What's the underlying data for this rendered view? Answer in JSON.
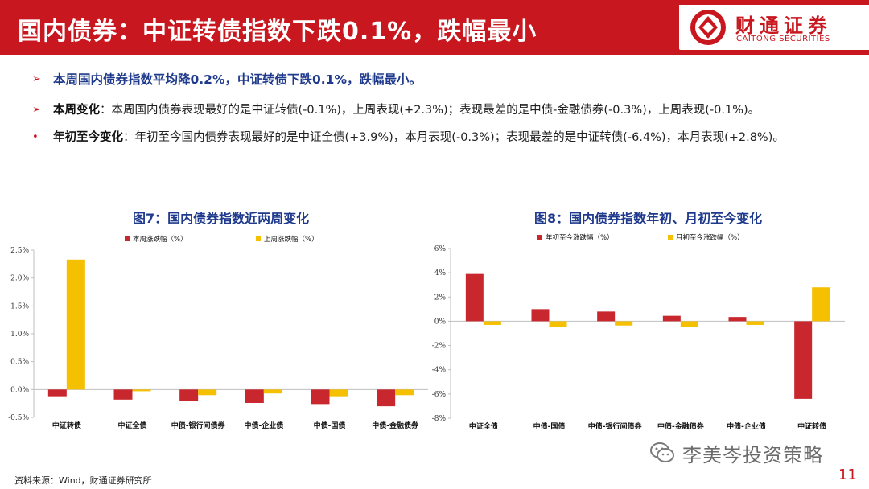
{
  "header": {
    "title": "国内债券：中证转债指数下跌0.1%，跌幅最小",
    "brand_cn": "财通证券",
    "brand_en": "CAITONG SECURITIES"
  },
  "bullets": {
    "b1": "本周国内债券指数平均降0.2%，中证转债下跌0.1%，跌幅最小。",
    "b2_label": "本周变化",
    "b2_text": "：本周国内债券表现最好的是中证转债(-0.1%)，上周表现(+2.3%)；表现最差的是中债-金融债券(-0.3%)，上周表现(-0.1%)。",
    "b3_label": "年初至今变化",
    "b3_text": "：年初至今国内债券表现最好的是中证全债(+3.9%)，本月表现(-0.3%)；表现最差的是中证转债(-6.4%)，本月表现(+2.8%)。"
  },
  "colors": {
    "red": "#c8272e",
    "yellow": "#f5c000",
    "brand": "#c8171f",
    "title_blue": "#1f3a8c"
  },
  "chart_data": [
    {
      "type": "bar",
      "title": "图7：国内债券指数近两周变化",
      "categories": [
        "中证转债",
        "中证全债",
        "中债-银行间债券",
        "中债-企业债",
        "中债-国债",
        "中债-金融债券"
      ],
      "series": [
        {
          "name": "本周涨跌幅（%）",
          "color": "#c8272e",
          "values": [
            -0.12,
            -0.18,
            -0.2,
            -0.24,
            -0.26,
            -0.3
          ]
        },
        {
          "name": "上周涨跌幅（%）",
          "color": "#f5c000",
          "values": [
            2.33,
            -0.03,
            -0.1,
            -0.07,
            -0.12,
            -0.1
          ]
        }
      ],
      "ylim": [
        -0.5,
        2.5
      ],
      "yticks": [
        "-0.5%",
        "0.0%",
        "0.5%",
        "1.0%",
        "1.5%",
        "2.0%",
        "2.5%"
      ],
      "legend": "top"
    },
    {
      "type": "bar",
      "title": "图8：国内债券指数年初、月初至今变化",
      "categories": [
        "中证全债",
        "中债-国债",
        "中债-银行间债券",
        "中债-金融债券",
        "中债-企业债",
        "中证转债"
      ],
      "series": [
        {
          "name": "年初至今涨跌幅（%）",
          "color": "#c8272e",
          "values": [
            3.9,
            1.0,
            0.8,
            0.45,
            0.35,
            -6.4
          ]
        },
        {
          "name": "月初至今涨跌幅（%）",
          "color": "#f5c000",
          "values": [
            -0.3,
            -0.5,
            -0.35,
            -0.5,
            -0.3,
            2.8
          ]
        }
      ],
      "ylim": [
        -8,
        6
      ],
      "yticks": [
        "-8%",
        "-6%",
        "-4%",
        "-2%",
        "0%",
        "2%",
        "4%",
        "6%"
      ],
      "legend": "top"
    }
  ],
  "footer": {
    "source": "资料来源：Wind，财通证券研究所",
    "watermark": "李美岑投资策略",
    "page": "11"
  }
}
